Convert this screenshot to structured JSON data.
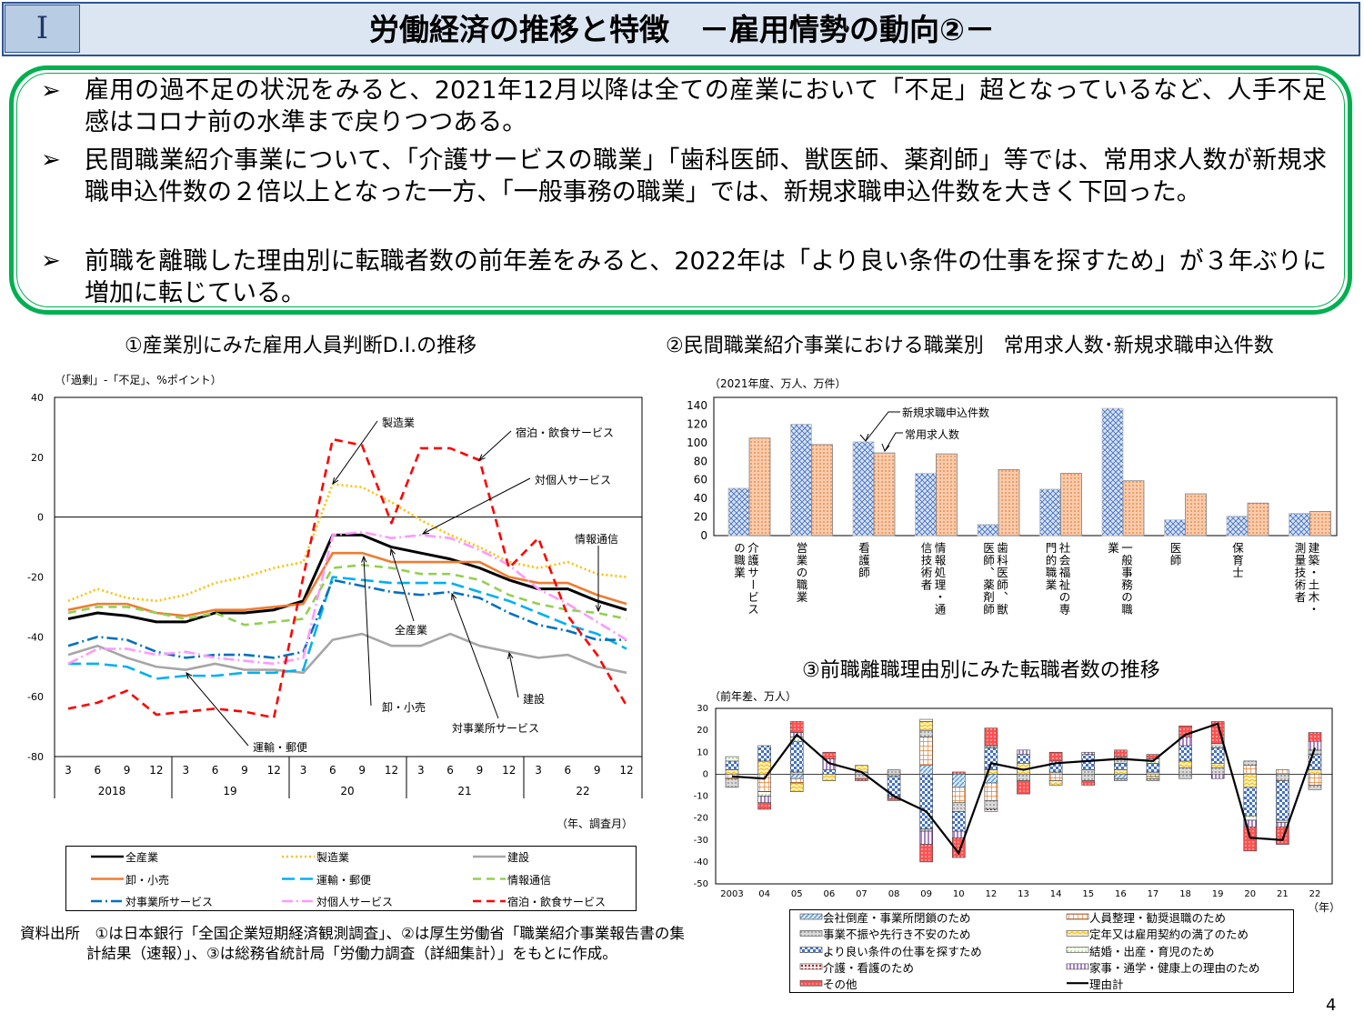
{
  "header": {
    "section": "I",
    "title": "労働経済の推移と特徴　－雇用情勢の動向②－"
  },
  "summary": {
    "bullet_icon": "arrowhead-bullet-icon",
    "items": [
      "雇用の過不足の状況をみると、2021年12月以降は全ての産業において「不足」超となっているなど、人手不足感はコロナ前の水準まで戻りつつある。",
      "民間職業紹介事業について、「介護サービスの職業」「歯科医師、獣医師、薬剤師」等では、常用求人数が新規求職申込件数の２倍以上となった一方、「一般事務の職業」では、新規求職申込件数を大きく下回った。",
      "前職を離職した理由別に転職者数の前年差をみると、2022年は「より良い条件の仕事を探すため」が３年ぶりに増加に転じている。"
    ]
  },
  "source": "資料出所　①は日本銀行「全国企業短期経済観測調査」、②は厚生労働省「職業紹介事業報告書の集計結果（速報）」、③は総務省統計局「労働力調査（詳細集計）」をもとに作成。",
  "page_number": "4",
  "chart_data": [
    {
      "type": "line",
      "title": "①産業別にみた雇用人員判断D.I.の推移",
      "unit_label": "（「過剰」-「不足」、%ポイント）",
      "xlabel": "（年、調査月）",
      "ylim": [
        -80,
        40
      ],
      "yticks": [
        "40",
        "20",
        "0",
        "-20",
        "-40",
        "-60",
        "-80"
      ],
      "months": [
        "3",
        "6",
        "9",
        "12",
        "3",
        "6",
        "9",
        "12",
        "3",
        "6",
        "9",
        "12",
        "3",
        "6",
        "9",
        "12",
        "3",
        "6",
        "9",
        "12"
      ],
      "years": [
        "2018",
        "19",
        "20",
        "21",
        "22"
      ],
      "legend_position": "bottom",
      "series": [
        {
          "name": "全産業",
          "color": "#000000",
          "style": "solid",
          "values": [
            -34,
            -32,
            -33,
            -35,
            -35,
            -32,
            -32,
            -31,
            -28,
            -6,
            -6,
            -10,
            -12,
            -14,
            -17,
            -21,
            -24,
            -24,
            -28,
            -31
          ]
        },
        {
          "name": "製造業",
          "color": "#ffc000",
          "style": "dotted",
          "values": [
            -28,
            -24,
            -27,
            -28,
            -26,
            -22,
            -20,
            -17,
            -15,
            11,
            10,
            5,
            -1,
            -6,
            -10,
            -15,
            -17,
            -15,
            -19,
            -20
          ]
        },
        {
          "name": "建設",
          "color": "#a6a6a6",
          "style": "solid",
          "values": [
            -46,
            -43,
            -47,
            -50,
            -51,
            -49,
            -51,
            -51,
            -52,
            -41,
            -39,
            -43,
            -43,
            -39,
            -43,
            -45,
            -47,
            -46,
            -50,
            -52
          ]
        },
        {
          "name": "卸・小売",
          "color": "#ed7d31",
          "style": "solid",
          "values": [
            -31,
            -29,
            -29,
            -32,
            -33,
            -31,
            -31,
            -30,
            -29,
            -12,
            -12,
            -15,
            -15,
            -15,
            -15,
            -20,
            -22,
            -22,
            -26,
            -29
          ]
        },
        {
          "name": "運輸・郵便",
          "color": "#00b0f0",
          "style": "longdash",
          "values": [
            -49,
            -49,
            -50,
            -54,
            -53,
            -53,
            -52,
            -52,
            -51,
            -20,
            -21,
            -22,
            -22,
            -22,
            -25,
            -28,
            -32,
            -36,
            -39,
            -44
          ]
        },
        {
          "name": "情報通信",
          "color": "#92d050",
          "style": "dash",
          "values": [
            -32,
            -30,
            -30,
            -32,
            -34,
            -32,
            -36,
            -35,
            -34,
            -17,
            -16,
            -17,
            -19,
            -19,
            -21,
            -26,
            -29,
            -31,
            -32,
            -34
          ]
        },
        {
          "name": "対事業所サービス",
          "color": "#0070c0",
          "style": "dashdot",
          "values": [
            -43,
            -40,
            -41,
            -45,
            -47,
            -46,
            -46,
            -47,
            -45,
            -21,
            -23,
            -25,
            -26,
            -25,
            -27,
            -32,
            -36,
            -38,
            -41,
            -41
          ]
        },
        {
          "name": "対個人サービス",
          "color": "#ff99ff",
          "style": "dashdot",
          "values": [
            -49,
            -44,
            -44,
            -46,
            -45,
            -47,
            -48,
            -49,
            -47,
            -6,
            -5,
            -7,
            -6,
            -7,
            -11,
            -16,
            -24,
            -29,
            -35,
            -41
          ]
        },
        {
          "name": "宿泊・飲食サービス",
          "color": "#ff0000",
          "style": "dash",
          "values": [
            -64,
            -62,
            -58,
            -66,
            -65,
            -64,
            -65,
            -67,
            -20,
            26,
            24,
            -2,
            23,
            23,
            19,
            -17,
            -7,
            -33,
            -46,
            -63
          ]
        }
      ]
    },
    {
      "type": "bar",
      "title": "②民間職業紹介事業における職業別　常用求人数･新規求職申込件数",
      "unit_label": "（2021年度、万人、万件）",
      "ylim": [
        0,
        140
      ],
      "yticks": [
        "140",
        "120",
        "100",
        "80",
        "60",
        "40",
        "20",
        "0"
      ],
      "categories": [
        "介護サービス\nの職業",
        "営業の職業",
        "看護師",
        "情報処理・通\n信技術者",
        "歯科医師、獣\n医師、薬剤師",
        "社会福祉の専\n門的職業",
        "一般事務の職\n業",
        "医師",
        "保育士",
        "建築・土木・\n測量技術者"
      ],
      "series": [
        {
          "name": "新規求職申込件数",
          "color": "#4472c4",
          "pattern": "crosshatch",
          "values": [
            51,
            120,
            101,
            67,
            12,
            50,
            137,
            17,
            21,
            24
          ]
        },
        {
          "name": "常用求人数",
          "color": "#ed7d31",
          "pattern": "dots",
          "values": [
            105,
            98,
            89,
            88,
            71,
            67,
            59,
            45,
            35,
            26
          ]
        }
      ]
    },
    {
      "type": "stacked-bar+line",
      "title": "③前職離職理由別にみた転職者数の推移",
      "unit_label": "（前年差、万人）",
      "xlabel": "（年）",
      "ylim": [
        -50,
        30
      ],
      "yticks": [
        "30",
        "20",
        "10",
        "0",
        "-10",
        "-20",
        "-30",
        "-40",
        "-50"
      ],
      "categories": [
        "2003",
        "04",
        "05",
        "06",
        "07",
        "08",
        "09",
        "10",
        "12",
        "13",
        "14",
        "15",
        "16",
        "17",
        "18",
        "19",
        "20",
        "21",
        "22"
      ],
      "reasons": {
        "bankruptcy": {
          "name": "会社倒産・事業所閉鎖のため",
          "color": "#5b9bd5"
        },
        "layoff": {
          "name": "人員整理・勧奨退職のため",
          "color": "#ed7d31"
        },
        "slump": {
          "name": "事業不振や先行き不安のため",
          "color": "#a6a6a6"
        },
        "retire": {
          "name": "定年又は雇用契約の満了のため",
          "color": "#ffc000"
        },
        "better": {
          "name": "より良い条件の仕事を探すため",
          "color": "#4472c4"
        },
        "marriage": {
          "name": "結婚・出産・育児のため",
          "color": "#92d050"
        },
        "care": {
          "name": "介護・看護のため",
          "color": "#c00000"
        },
        "household": {
          "name": "家事・通学・健康上の理由のため",
          "color": "#7030a0"
        },
        "other": {
          "name": "その他",
          "color": "#ff5050"
        },
        "total": {
          "name": "理由計",
          "color": "#000000"
        }
      },
      "legend_order": [
        "bankruptcy",
        "layoff",
        "slump",
        "retire",
        "better",
        "marriage",
        "care",
        "household",
        "other",
        "total"
      ],
      "totals": [
        -1,
        -2,
        18,
        5,
        1,
        -10,
        -17,
        -36,
        5,
        2,
        5,
        6,
        7,
        6,
        18,
        23,
        -29,
        -30,
        12
      ],
      "stacks": [
        {
          "pos": [
            [
              "retire",
              2
            ],
            [
              "better",
              4
            ],
            [
              "marriage",
              2
            ]
          ],
          "neg": [
            [
              "layoff",
              -2
            ],
            [
              "slump",
              -4
            ]
          ]
        },
        {
          "pos": [
            [
              "retire",
              6
            ],
            [
              "better",
              7
            ]
          ],
          "neg": [
            [
              "layoff",
              -8
            ],
            [
              "marriage",
              -2
            ],
            [
              "household",
              -3
            ],
            [
              "other",
              -3
            ]
          ]
        },
        {
          "pos": [
            [
              "slump",
              1
            ],
            [
              "better",
              14
            ],
            [
              "marriage",
              2
            ],
            [
              "household",
              2
            ],
            [
              "other",
              5
            ]
          ],
          "neg": [
            [
              "bankruptcy",
              -2
            ],
            [
              "layoff",
              -2
            ],
            [
              "retire",
              -4
            ]
          ]
        },
        {
          "pos": [
            [
              "better",
              2
            ],
            [
              "household",
              5
            ],
            [
              "other",
              3
            ]
          ],
          "neg": [
            [
              "retire",
              -3
            ]
          ]
        },
        {
          "pos": [
            [
              "slump",
              1
            ],
            [
              "retire",
              3
            ]
          ],
          "neg": [
            [
              "slump",
              -2
            ],
            [
              "other",
              -1
            ]
          ]
        },
        {
          "pos": [
            [
              "slump",
              2
            ]
          ],
          "neg": [
            [
              "slump",
              -1
            ],
            [
              "better",
              -9
            ],
            [
              "household",
              -1
            ],
            [
              "other",
              -1
            ]
          ]
        },
        {
          "pos": [
            [
              "bankruptcy",
              4
            ],
            [
              "layoff",
              13
            ],
            [
              "slump",
              3
            ],
            [
              "retire",
              4
            ],
            [
              "marriage",
              1
            ]
          ],
          "neg": [
            [
              "better",
              -25
            ],
            [
              "slump",
              -1
            ],
            [
              "household",
              -6
            ],
            [
              "other",
              -8
            ]
          ]
        },
        {
          "pos": [
            [
              "other",
              1
            ]
          ],
          "neg": [
            [
              "bankruptcy",
              -6
            ],
            [
              "layoff",
              -7
            ],
            [
              "slump",
              -4
            ],
            [
              "better",
              -9
            ],
            [
              "household",
              -3
            ],
            [
              "other",
              -9
            ]
          ]
        },
        {
          "pos": [
            [
              "retire",
              2
            ],
            [
              "better",
              10
            ],
            [
              "slump",
              1
            ],
            [
              "other",
              8
            ]
          ],
          "neg": [
            [
              "bankruptcy",
              -4
            ],
            [
              "layoff",
              -8
            ],
            [
              "slump",
              -4
            ],
            [
              "care",
              -1
            ]
          ]
        },
        {
          "pos": [
            [
              "retire",
              5
            ],
            [
              "better",
              4
            ],
            [
              "household",
              2
            ]
          ],
          "neg": [
            [
              "slump",
              -3
            ],
            [
              "other",
              -6
            ]
          ]
        },
        {
          "pos": [
            [
              "slump",
              1
            ],
            [
              "better",
              4
            ],
            [
              "household",
              1
            ],
            [
              "other",
              4
            ]
          ],
          "neg": [
            [
              "layoff",
              -3
            ],
            [
              "retire",
              -2
            ]
          ]
        },
        {
          "pos": [
            [
              "slump",
              2
            ],
            [
              "better",
              7
            ],
            [
              "household",
              1
            ]
          ],
          "neg": [
            [
              "slump",
              -3
            ],
            [
              "other",
              -2
            ]
          ]
        },
        {
          "pos": [
            [
              "retire",
              2
            ],
            [
              "better",
              3
            ],
            [
              "slump",
              3
            ],
            [
              "other",
              3
            ]
          ],
          "neg": [
            [
              "bankruptcy",
              -2
            ],
            [
              "slump",
              -1
            ]
          ]
        },
        {
          "pos": [
            [
              "slump",
              1
            ],
            [
              "better",
              4
            ],
            [
              "marriage",
              2
            ],
            [
              "other",
              2
            ]
          ],
          "neg": [
            [
              "layoff",
              -1
            ],
            [
              "retire",
              -1
            ],
            [
              "slump",
              -1
            ]
          ]
        },
        {
          "pos": [
            [
              "slump",
              3
            ],
            [
              "retire",
              3
            ],
            [
              "better",
              7
            ],
            [
              "household",
              4
            ],
            [
              "other",
              5
            ]
          ],
          "neg": [
            [
              "slump",
              -2
            ]
          ]
        },
        {
          "pos": [
            [
              "slump",
              3
            ],
            [
              "retire",
              2
            ],
            [
              "better",
              7
            ],
            [
              "slump",
              2
            ],
            [
              "other",
              10
            ]
          ],
          "neg": [
            [
              "household",
              -2
            ]
          ]
        },
        {
          "pos": [
            [
              "layoff",
              4
            ],
            [
              "slump",
              2
            ]
          ],
          "neg": [
            [
              "retire",
              -6
            ],
            [
              "better",
              -13
            ],
            [
              "marriage",
              -2
            ],
            [
              "household",
              -3
            ],
            [
              "other",
              -11
            ]
          ]
        },
        {
          "pos": [
            [
              "layoff",
              2
            ]
          ],
          "neg": [
            [
              "slump",
              -3
            ],
            [
              "better",
              -18
            ],
            [
              "slump",
              -1
            ],
            [
              "household",
              -2
            ],
            [
              "other",
              -8
            ]
          ]
        },
        {
          "pos": [
            [
              "retire",
              2
            ],
            [
              "better",
              7
            ],
            [
              "slump",
              2
            ],
            [
              "household",
              4
            ],
            [
              "other",
              4
            ]
          ],
          "neg": [
            [
              "layoff",
              -5
            ],
            [
              "slump",
              -2
            ]
          ]
        }
      ]
    }
  ],
  "annotations": {
    "chart1": [
      "製造業",
      "宿泊・飲食サービス",
      "対個人サービス",
      "情報通信",
      "全産業",
      "卸・小売",
      "建設",
      "対事業所サービス",
      "運輸・郵便"
    ],
    "chart2": [
      "新規求職申込件数",
      "常用求人数"
    ]
  }
}
